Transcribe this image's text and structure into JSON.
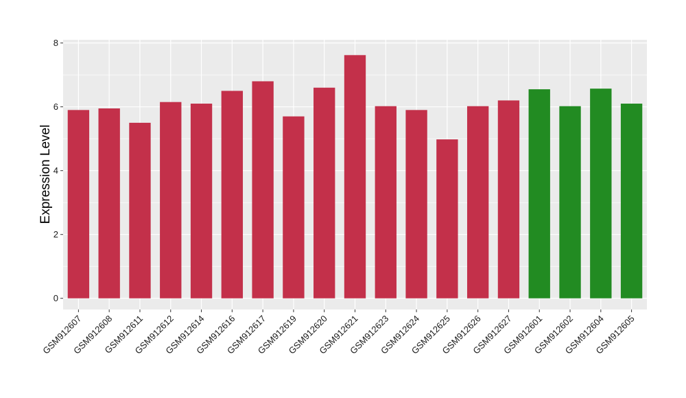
{
  "chart_data": {
    "type": "bar",
    "ylabel": "Expression Level",
    "xlabel": "",
    "ylim": [
      -0.35,
      8.1
    ],
    "yticks": [
      0,
      2,
      4,
      6,
      8
    ],
    "grid": true,
    "legend": "none",
    "categories": [
      "GSM912607",
      "GSM912608",
      "GSM912611",
      "GSM912612",
      "GSM912614",
      "GSM912616",
      "GSM912617",
      "GSM912619",
      "GSM912620",
      "GSM912621",
      "GSM912623",
      "GSM912624",
      "GSM912625",
      "GSM912626",
      "GSM912627",
      "GSM912601",
      "GSM912602",
      "GSM912604",
      "GSM912605"
    ],
    "values": [
      5.9,
      5.95,
      5.5,
      6.15,
      6.1,
      6.5,
      6.8,
      5.7,
      6.6,
      7.62,
      6.02,
      5.9,
      4.98,
      6.02,
      6.2,
      6.55,
      6.02,
      6.57,
      6.1
    ],
    "bar_colors": [
      "#c3304a",
      "#c3304a",
      "#c3304a",
      "#c3304a",
      "#c3304a",
      "#c3304a",
      "#c3304a",
      "#c3304a",
      "#c3304a",
      "#c3304a",
      "#c3304a",
      "#c3304a",
      "#c3304a",
      "#c3304a",
      "#c3304a",
      "#228b22",
      "#228b22",
      "#228b22",
      "#228b22"
    ],
    "panel_color": "#ebebeb",
    "grid_color": "#ffffff"
  }
}
